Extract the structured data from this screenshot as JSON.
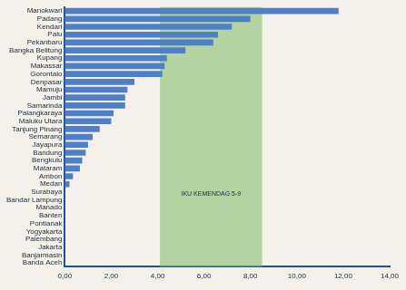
{
  "chart_data": {
    "type": "bar",
    "orientation": "horizontal",
    "categories": [
      "Manokwari",
      "Padang",
      "Kendari",
      "Palu",
      "Pekanbaru",
      "Bangka Belitung",
      "Kupang",
      "Makassar",
      "Gorontalo",
      "Denpasar",
      "Mamuju",
      "Jambi",
      "Samarinda",
      "Palangkaraya",
      "Maluku Utara",
      "Tanjung Pinang",
      "Semarang",
      "Jayapura",
      "Bandung",
      "Bengkulu",
      "Mataram",
      "Ambon",
      "Medan",
      "Surabaya",
      "Bandar Lampung",
      "Manado",
      "Banten",
      "Pontianak",
      "Yogyakarta",
      "Palembang",
      "Jakarta",
      "Banjarmasin",
      "Banda Aceh"
    ],
    "values": [
      11.8,
      8.0,
      7.2,
      6.6,
      6.4,
      5.2,
      4.4,
      4.3,
      4.2,
      3.0,
      2.7,
      2.6,
      2.6,
      2.1,
      2.0,
      1.5,
      1.2,
      1.0,
      0.9,
      0.75,
      0.65,
      0.35,
      0.2,
      0,
      0,
      0,
      0,
      0,
      0,
      0,
      0,
      0,
      0
    ],
    "color": "#4f7fc7",
    "xlim": [
      0,
      14
    ],
    "xticks": [
      {
        "value": 0,
        "label": "0,00"
      },
      {
        "value": 2,
        "label": "2,00"
      },
      {
        "value": 4,
        "label": "4,00"
      },
      {
        "value": 6,
        "label": "6,00"
      },
      {
        "value": 8,
        "label": "8,00"
      },
      {
        "value": 10,
        "label": "10,00"
      },
      {
        "value": 12,
        "label": "12,00"
      },
      {
        "value": 14,
        "label": "14,00"
      }
    ],
    "grid": false,
    "band": {
      "label": "IKU KEMENDAG 5-9",
      "from": 4.1,
      "to": 8.5
    }
  }
}
